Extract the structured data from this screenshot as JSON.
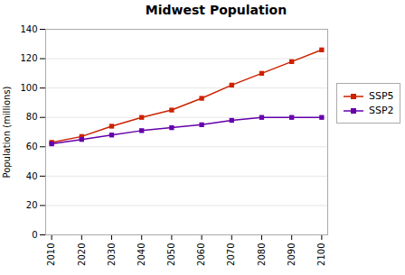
{
  "chart_data": {
    "type": "line",
    "title": "Midwest Population",
    "ylabel": "Population (millions)",
    "x": [
      2010,
      2020,
      2030,
      2040,
      2050,
      2060,
      2070,
      2080,
      2090,
      2100
    ],
    "series": [
      {
        "name": "SSP5",
        "color": "#CC2200",
        "marker": "square",
        "values": [
          63,
          67,
          74,
          80,
          85,
          93,
          102,
          110,
          118,
          126
        ]
      },
      {
        "name": "SSP2",
        "color": "#6600AA",
        "marker": "square",
        "values": [
          62,
          65,
          68,
          71,
          73,
          75,
          78,
          80,
          80,
          80
        ]
      }
    ],
    "xlim": [
      2008,
      2102
    ],
    "xticks": [
      2010,
      2020,
      2030,
      2040,
      2050,
      2060,
      2070,
      2080,
      2090,
      2100
    ],
    "ylim": [
      0,
      140
    ],
    "yticks": [
      0,
      20,
      40,
      60,
      80,
      100,
      120,
      140
    ],
    "grid": true,
    "legend": "right"
  }
}
